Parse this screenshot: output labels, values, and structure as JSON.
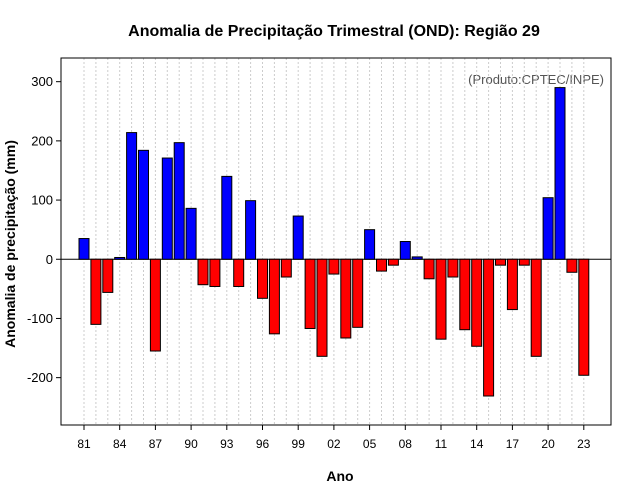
{
  "chart_data": {
    "type": "bar",
    "title": "Anomalia de Precipitação Trimestral (OND): Região 29",
    "credit": "(Produto:CPTEC/INPE)",
    "xlabel": "Ano",
    "ylabel": "Anomalia de precipitação (mm)",
    "ylim": [
      -280,
      340
    ],
    "y_ticks": [
      -200,
      -100,
      0,
      100,
      200,
      300
    ],
    "x_ticks": [
      {
        "year": 1981,
        "label": "81"
      },
      {
        "year": 1984,
        "label": "84"
      },
      {
        "year": 1987,
        "label": "87"
      },
      {
        "year": 1990,
        "label": "90"
      },
      {
        "year": 1993,
        "label": "93"
      },
      {
        "year": 1996,
        "label": "96"
      },
      {
        "year": 1999,
        "label": "99"
      },
      {
        "year": 2002,
        "label": "02"
      },
      {
        "year": 2005,
        "label": "05"
      },
      {
        "year": 2008,
        "label": "08"
      },
      {
        "year": 2011,
        "label": "11"
      },
      {
        "year": 2014,
        "label": "14"
      },
      {
        "year": 2017,
        "label": "17"
      },
      {
        "year": 2020,
        "label": "20"
      },
      {
        "year": 2023,
        "label": "23"
      }
    ],
    "grid": true,
    "positive_color": "#0000ff",
    "negative_color": "#ff0000",
    "categories": [
      1981,
      1982,
      1983,
      1984,
      1985,
      1986,
      1987,
      1988,
      1989,
      1990,
      1991,
      1992,
      1993,
      1994,
      1995,
      1996,
      1997,
      1998,
      1999,
      2000,
      2001,
      2002,
      2003,
      2004,
      2005,
      2006,
      2007,
      2008,
      2009,
      2010,
      2011,
      2012,
      2013,
      2014,
      2015,
      2016,
      2017,
      2018,
      2019,
      2020,
      2021,
      2022,
      2023
    ],
    "values": [
      35,
      -110,
      -56,
      3,
      214,
      184,
      -155,
      171,
      197,
      86,
      -43,
      -46,
      140,
      -46,
      99,
      -66,
      -126,
      -30,
      73,
      -117,
      -164,
      -25,
      -133,
      -115,
      50,
      -20,
      -10,
      30,
      4,
      -33,
      -135,
      -30,
      -119,
      -147,
      -231,
      -10,
      -85,
      -10,
      -164,
      104,
      290,
      -22,
      -196
    ]
  }
}
